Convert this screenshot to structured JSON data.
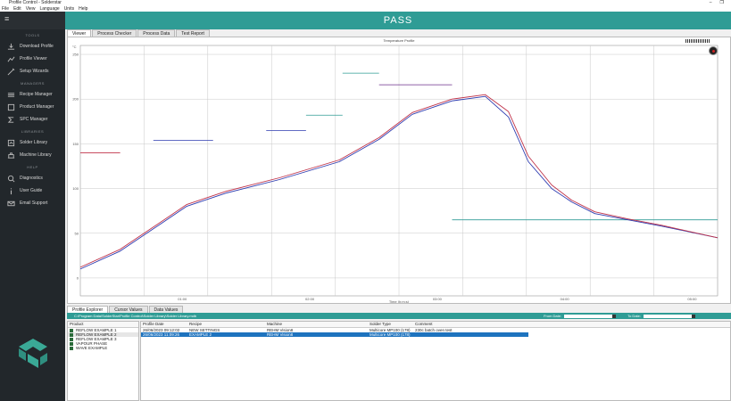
{
  "window": {
    "title": "Profile Control - Solderstar",
    "min_icon": "–",
    "max_icon": "❐"
  },
  "menu": [
    "File",
    "Edit",
    "View",
    "Language",
    "Units",
    "Help"
  ],
  "status": "PASS",
  "sidebar": {
    "tools_label": "TOOLS",
    "tools": [
      {
        "label": "Download Profile",
        "icon": "download-icon"
      },
      {
        "label": "Profile Viewer",
        "icon": "profile-viewer-icon"
      },
      {
        "label": "Setup Wizards",
        "icon": "wand-icon"
      }
    ],
    "managers_label": "MANAGERS",
    "managers": [
      {
        "label": "Recipe Manager",
        "icon": "recipe-icon"
      },
      {
        "label": "Product Manager",
        "icon": "product-icon"
      },
      {
        "label": "SPC Manager",
        "icon": "sigma-icon"
      }
    ],
    "libraries_label": "LIBRARIES",
    "libraries": [
      {
        "label": "Solder Library",
        "icon": "solder-icon"
      },
      {
        "label": "Machine Library",
        "icon": "machine-icon"
      }
    ],
    "help_label": "HELP",
    "help": [
      {
        "label": "Diagnostics",
        "icon": "diagnostics-icon"
      },
      {
        "label": "User Guide",
        "icon": "info-icon"
      },
      {
        "label": "Email Support",
        "icon": "mail-icon"
      }
    ]
  },
  "tabs": [
    "Viewer",
    "Process Checker",
    "Process Data",
    "Test Report"
  ],
  "chart_title": "Temperature Profile",
  "x_axis_label": "Time (h:m:s)",
  "chart_data": {
    "type": "line",
    "title": "Temperature Profile",
    "xlabel": "Time (h:m:s)",
    "ylabel": "°C",
    "xlim": [
      0,
      384
    ],
    "ylim": [
      -20,
      260
    ],
    "grid": true,
    "x_tick_labels": [
      "01:00",
      "02:00",
      "03:00",
      "04:00",
      "05:00"
    ],
    "y_tick_labels": [
      "250",
      "200",
      "150",
      "100",
      "50",
      "0"
    ],
    "series": [
      {
        "color": "#2e3cb0",
        "x": [
          0,
          24,
          48,
          64,
          88,
          120,
          156,
          180,
          200,
          224,
          244,
          258,
          270,
          284,
          296,
          310,
          330,
          350,
          384
        ],
        "y": [
          10,
          30,
          60,
          80,
          95,
          110,
          130,
          155,
          183,
          198,
          203,
          180,
          130,
          100,
          85,
          72,
          65,
          58,
          45
        ]
      },
      {
        "color": "#c0334a",
        "x": [
          0,
          24,
          48,
          64,
          88,
          120,
          156,
          180,
          200,
          224,
          244,
          258,
          270,
          284,
          296,
          310,
          330,
          350,
          384
        ],
        "y": [
          12,
          32,
          62,
          82,
          97,
          112,
          132,
          157,
          185,
          200,
          205,
          186,
          136,
          104,
          87,
          74,
          66,
          59,
          45
        ]
      }
    ],
    "limit_segments": [
      {
        "color": "#c0334a",
        "x": [
          0,
          24
        ],
        "y": 140
      },
      {
        "color": "#2e3cb0",
        "x": [
          44,
          80
        ],
        "y": 154
      },
      {
        "color": "#2e3cb0",
        "x": [
          112,
          136
        ],
        "y": 165
      },
      {
        "color": "#2f9c95",
        "x": [
          136,
          158
        ],
        "y": 182
      },
      {
        "color": "#2f9c95",
        "x": [
          158,
          180
        ],
        "y": 229
      },
      {
        "color": "#6a2c8a",
        "x": [
          180,
          224
        ],
        "y": 216
      },
      {
        "color": "#2f9c95",
        "x": [
          224,
          384
        ],
        "y": 65
      }
    ]
  },
  "bottom_tabs": [
    "Profile Explorer",
    "Cursor Values",
    "Data Values"
  ],
  "filter": {
    "path": "C:\\Program Data\\SolderStar\\Profile Control\\Solder Library\\Solder Library.mdb",
    "from_label": "From Date:",
    "to_label": "To Date:"
  },
  "products": {
    "header": "Product",
    "items": [
      "REFLOW EXAMPLE 1",
      "REFLOW EXAMPLE 2",
      "REFLOW EXAMPLE 3",
      "VAPOUR PHASE",
      "WAVE EXAMPLE"
    ]
  },
  "table": {
    "columns": [
      "Profile Date",
      "Recipe",
      "Machine",
      "Solder Type",
      "Comment"
    ],
    "rows": [
      [
        "26/06/2023 09:12:02",
        "NEW SETTINGS",
        "REHM Vision8",
        "Multicore MP100 (178)",
        "230c batch oven test"
      ],
      [
        "26/06/2023 11:09:26",
        "EXAMPLE 2",
        "REHM Vision8",
        "Multicore MP100 (178)",
        ""
      ]
    ]
  }
}
